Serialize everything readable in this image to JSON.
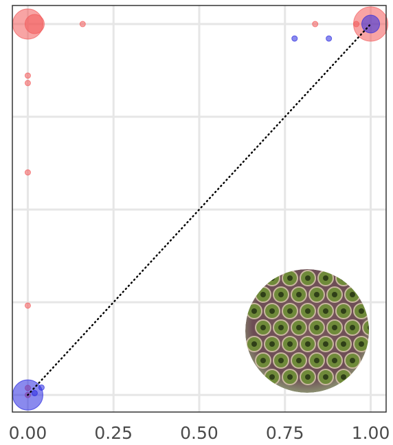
{
  "chart_data": {
    "type": "scatter",
    "xlim": [
      -0.045,
      1.045
    ],
    "ylim": [
      -0.046,
      1.05
    ],
    "xticks": [
      {
        "value": 0,
        "label": "0.00"
      },
      {
        "value": 0.25,
        "label": "0.25"
      },
      {
        "value": 0.5,
        "label": "0.50"
      },
      {
        "value": 0.75,
        "label": "0.75"
      },
      {
        "value": 1,
        "label": "1.00"
      }
    ],
    "yticks": [
      0,
      0.25,
      0.5,
      0.75,
      1
    ],
    "grid": true,
    "reference_line": {
      "x": [
        0,
        1
      ],
      "y": [
        0,
        1
      ]
    },
    "series": [
      {
        "color": "#f25a5a",
        "x": [
          0,
          0.02,
          0.16,
          0,
          0,
          0,
          0,
          0,
          0,
          0.838,
          0.958,
          1
        ],
        "values": [
          1,
          1,
          1,
          0.861,
          0.841,
          0.6,
          0.241,
          0.019,
          0,
          1,
          1,
          1
        ],
        "sizes": [
          22,
          14,
          4,
          4,
          4,
          4,
          4,
          4,
          4,
          4,
          4,
          25
        ]
      },
      {
        "color": "#2a2ae0",
        "x": [
          0,
          0.02,
          0.04,
          0.778,
          0.878,
          1
        ],
        "values": [
          0,
          0.005,
          0.02,
          0.961,
          0.961,
          1
        ],
        "sizes": [
          22,
          4,
          4,
          4,
          4,
          13
        ]
      }
    ]
  }
}
